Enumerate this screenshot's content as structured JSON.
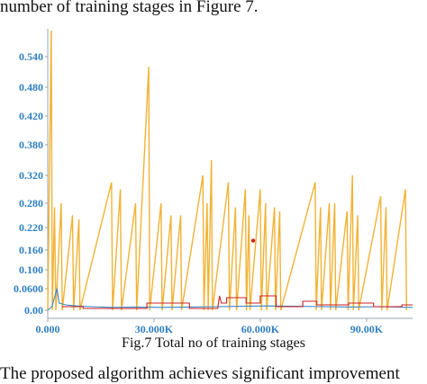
{
  "page": {
    "top_text": "number of training stages in Figure 7.",
    "caption": "Fig.7 Total no of training stages",
    "bottom_text": "The proposed algorithm achieves significant improvement"
  },
  "chart_data": {
    "type": "line",
    "title": "",
    "xlabel": "",
    "ylabel": "",
    "xlim": [
      0,
      103000
    ],
    "y_ticks": [
      {
        "label": "0.00",
        "value": 0.0
      },
      {
        "label": "0.0600",
        "value": 0.06
      },
      {
        "label": "0.100",
        "value": 0.1
      },
      {
        "label": "0.160",
        "value": 0.16
      },
      {
        "label": "0.220",
        "value": 0.22
      },
      {
        "label": "0.280",
        "value": 0.28
      },
      {
        "label": "0.320",
        "value": 0.32
      },
      {
        "label": "0.380",
        "value": 0.38
      },
      {
        "label": "0.420",
        "value": 0.42
      },
      {
        "label": "0.480",
        "value": 0.48
      },
      {
        "label": "0.540",
        "value": 0.54
      }
    ],
    "x_ticks": [
      {
        "label": "0.000",
        "value": 0
      },
      {
        "label": "30.000K",
        "value": 30000
      },
      {
        "label": "60.000K",
        "value": 60000
      },
      {
        "label": "90.00K",
        "value": 90000
      }
    ],
    "colors": {
      "spikes": "#f2b233",
      "blue": "#3a85c8",
      "red": "#cc2222",
      "axis": "#9aa4ad"
    },
    "series": [
      {
        "color": "#f2b233",
        "points": [
          [
            0,
            0
          ],
          [
            1000,
            0.6
          ],
          [
            1300,
            0
          ],
          [
            1900,
            0.27
          ],
          [
            2300,
            0
          ],
          [
            3800,
            0.28
          ],
          [
            4100,
            0
          ],
          [
            7000,
            0.25
          ],
          [
            7300,
            0
          ],
          [
            8800,
            0.24
          ],
          [
            9100,
            0
          ],
          [
            18000,
            0.31
          ],
          [
            18300,
            0
          ],
          [
            20500,
            0.3
          ],
          [
            20800,
            0
          ],
          [
            24800,
            0.28
          ],
          [
            25100,
            0
          ],
          [
            28500,
            0.52
          ],
          [
            28800,
            0
          ],
          [
            32000,
            0.28
          ],
          [
            32300,
            0
          ],
          [
            34800,
            0.25
          ],
          [
            35100,
            0
          ],
          [
            37500,
            0.25
          ],
          [
            37800,
            0
          ],
          [
            43800,
            0.32
          ],
          [
            44100,
            0
          ],
          [
            45000,
            0.28
          ],
          [
            45300,
            0
          ],
          [
            46200,
            0.35
          ],
          [
            46500,
            0
          ],
          [
            51000,
            0.31
          ],
          [
            51300,
            0
          ],
          [
            53000,
            0.27
          ],
          [
            53300,
            0
          ],
          [
            55800,
            0.3
          ],
          [
            56100,
            0
          ],
          [
            56800,
            0.25
          ],
          [
            57100,
            0
          ],
          [
            60000,
            0.3
          ],
          [
            60300,
            0
          ],
          [
            61500,
            0.28
          ],
          [
            61800,
            0
          ],
          [
            64000,
            0.27
          ],
          [
            64300,
            0
          ],
          [
            65500,
            0.26
          ],
          [
            65800,
            0
          ],
          [
            75500,
            0.31
          ],
          [
            75800,
            0
          ],
          [
            77000,
            0.27
          ],
          [
            77300,
            0
          ],
          [
            79500,
            0.28
          ],
          [
            79800,
            0
          ],
          [
            81000,
            0.28
          ],
          [
            81300,
            0
          ],
          [
            84500,
            0.26
          ],
          [
            84800,
            0
          ],
          [
            86000,
            0.32
          ],
          [
            86300,
            0
          ],
          [
            87500,
            0.25
          ],
          [
            87800,
            0
          ],
          [
            94000,
            0.29
          ],
          [
            94300,
            0
          ],
          [
            95500,
            0.27
          ],
          [
            95800,
            0
          ],
          [
            101000,
            0.3
          ],
          [
            101300,
            0
          ]
        ]
      },
      {
        "color": "#3a85c8",
        "points": [
          [
            0,
            0.0
          ],
          [
            1200,
            0.01
          ],
          [
            2600,
            0.06
          ],
          [
            3200,
            0.02
          ],
          [
            5000,
            0.015
          ],
          [
            8000,
            0.012
          ],
          [
            12000,
            0.01
          ],
          [
            18000,
            0.008
          ],
          [
            25000,
            0.009
          ],
          [
            32000,
            0.008
          ],
          [
            40000,
            0.009
          ],
          [
            48000,
            0.01
          ],
          [
            55000,
            0.011
          ],
          [
            62000,
            0.012
          ],
          [
            70000,
            0.011
          ],
          [
            78000,
            0.01
          ],
          [
            86000,
            0.009
          ],
          [
            94000,
            0.01
          ],
          [
            103000,
            0.008
          ]
        ]
      },
      {
        "color": "#cc2222",
        "points": [
          [
            4000,
            0.01
          ],
          [
            10000,
            0.01
          ],
          [
            10000,
            0.005
          ],
          [
            28000,
            0.005
          ],
          [
            28000,
            0.02
          ],
          [
            40000,
            0.02
          ],
          [
            40000,
            0.005
          ],
          [
            48000,
            0.005
          ],
          [
            48500,
            0.04
          ],
          [
            49000,
            0.02
          ],
          [
            50500,
            0.02
          ],
          [
            50500,
            0.035
          ],
          [
            56000,
            0.035
          ],
          [
            56000,
            0.02
          ],
          [
            60000,
            0.02
          ],
          [
            60000,
            0.04
          ],
          [
            64500,
            0.04
          ],
          [
            64500,
            0.01
          ],
          [
            72000,
            0.01
          ],
          [
            72000,
            0.025
          ],
          [
            76000,
            0.025
          ],
          [
            76000,
            0.015
          ],
          [
            85000,
            0.015
          ],
          [
            85000,
            0.02
          ],
          [
            92000,
            0.02
          ],
          [
            92000,
            0.01
          ],
          [
            100000,
            0.01
          ],
          [
            100000,
            0.015
          ],
          [
            103000,
            0.015
          ]
        ]
      }
    ],
    "marker": {
      "x": 58000,
      "y": 0.185,
      "color": "#cc2222"
    }
  }
}
